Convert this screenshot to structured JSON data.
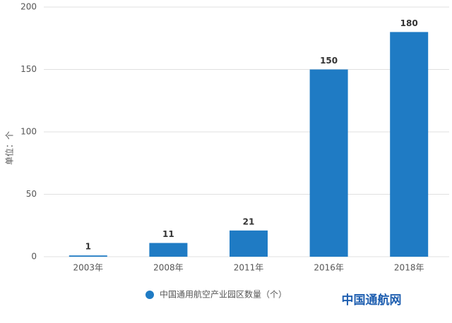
{
  "chart_data": {
    "type": "bar",
    "y_label": "单位：个",
    "categories": [
      "2003年",
      "2008年",
      "2011年",
      "2016年",
      "2018年"
    ],
    "series": [
      {
        "name": "中国通用航空产业园区数量（个）",
        "color": "#1f7bc4",
        "values": [
          1,
          11,
          21,
          150,
          180
        ]
      }
    ],
    "ylim": [
      0,
      200
    ],
    "yticks": [
      0,
      50,
      100,
      150,
      200
    ],
    "grid": true,
    "data_labels": true,
    "legend": "bottom",
    "watermark": "中国通航网"
  }
}
